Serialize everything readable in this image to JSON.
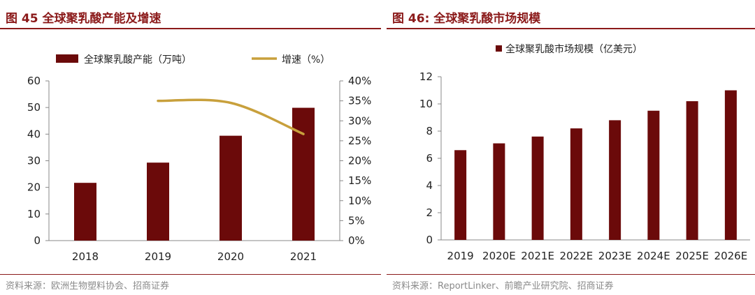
{
  "charts": {
    "left": {
      "title": "图 45 全球聚乳酸产能及增速",
      "source": "资料来源：欧洲生物塑料协会、招商证券"
    },
    "right": {
      "title": "图 46: 全球聚乳酸市场规模",
      "source": "资料来源：ReportLinker、前瞻产业研究院、招商证券"
    }
  },
  "colors": {
    "bar": "#6B0A0A",
    "line": "#C8A03C",
    "accent": "#8B1A1A"
  },
  "chart_data": [
    {
      "type": "bar",
      "categories": [
        "2018",
        "2019",
        "2020",
        "2021"
      ],
      "series": [
        {
          "name": "全球聚乳酸产能（万吨）",
          "type": "bar",
          "axis": "left",
          "values": [
            21.7,
            29.3,
            39.4,
            49.9
          ]
        },
        {
          "name": "增速（%）",
          "type": "line",
          "axis": "right",
          "values": [
            null,
            35,
            34.5,
            26.7
          ]
        }
      ],
      "ylim": [
        0,
        60
      ],
      "yticks": [
        "0",
        "10",
        "20",
        "30",
        "40",
        "50",
        "60"
      ],
      "y2lim": [
        0,
        40
      ],
      "y2ticks": [
        "0%",
        "5%",
        "10%",
        "15%",
        "20%",
        "25%",
        "30%",
        "35%",
        "40%"
      ],
      "legend": "top",
      "grid": false
    },
    {
      "type": "bar",
      "categories": [
        "2019",
        "2020E",
        "2021E",
        "2022E",
        "2023E",
        "2024E",
        "2025E",
        "2026E"
      ],
      "series": [
        {
          "name": "全球聚乳酸市场规模（亿美元）",
          "values": [
            6.6,
            7.1,
            7.6,
            8.2,
            8.8,
            9.5,
            10.2,
            11.0
          ]
        }
      ],
      "ylim": [
        0,
        12
      ],
      "yticks": [
        "0",
        "2",
        "4",
        "6",
        "8",
        "10",
        "12"
      ],
      "legend": "top",
      "grid": false
    }
  ]
}
